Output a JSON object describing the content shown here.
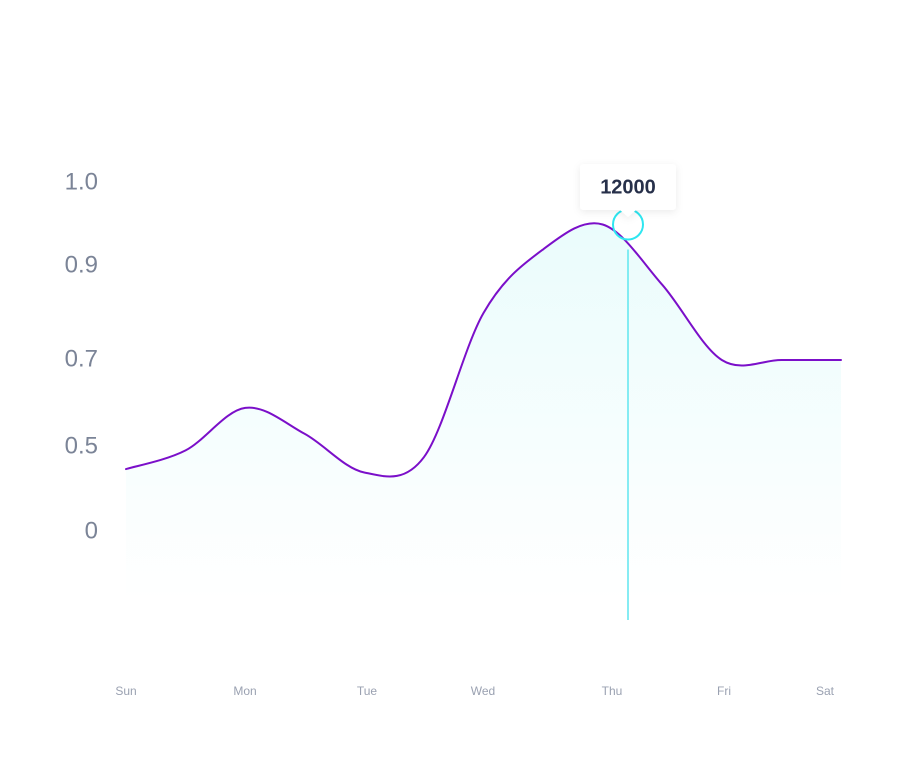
{
  "chart_data": {
    "type": "area",
    "title": "",
    "xlabel": "",
    "ylabel": "",
    "categories": [
      "Sun",
      "Mon",
      "Tue",
      "Wed",
      "Thu",
      "Fri",
      "Sat"
    ],
    "y_tick_labels": [
      "1.0",
      "0.9",
      "0.7",
      "0.5",
      "0"
    ],
    "series": [
      {
        "x": [
          "Sun",
          "",
          "Mon",
          "",
          "Tue",
          "",
          "Wed",
          "",
          "Thu",
          "",
          "Fri",
          "",
          "Sat"
        ],
        "values": [
          0.37,
          0.48,
          0.59,
          0.53,
          0.35,
          0.44,
          0.8,
          0.92,
          0.95,
          0.86,
          0.7,
          0.7,
          0.7
        ]
      }
    ],
    "highlight": {
      "category": "Thu",
      "label": "12000"
    },
    "grid": false,
    "legend": "none",
    "colors": {
      "line": "#7b0fc9",
      "fill": "#eafcfc",
      "marker": "#2ee6f0",
      "guide": "#5fe6ef",
      "tick_text": "#7b8497",
      "x_tick_text": "#9aa1b1",
      "tooltip_text": "#27304a"
    }
  }
}
